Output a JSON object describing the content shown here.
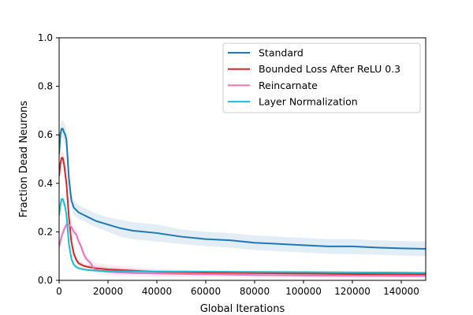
{
  "chart_data": {
    "type": "line",
    "xlabel": "Global Iterations",
    "ylabel": "Fraction Dead Neurons",
    "xlim": [
      0,
      150000
    ],
    "ylim": [
      0,
      1.0
    ],
    "xticks": [
      0,
      20000,
      40000,
      60000,
      80000,
      100000,
      120000,
      140000
    ],
    "xtick_labels": [
      "0",
      "20000",
      "40000",
      "60000",
      "80000",
      "100000",
      "120000",
      "140000"
    ],
    "yticks": [
      0.0,
      0.2,
      0.4,
      0.6,
      0.8,
      1.0
    ],
    "ytick_labels": [
      "0.0",
      "0.2",
      "0.4",
      "0.6",
      "0.8",
      "1.0"
    ],
    "grid": false,
    "legend_position": "top-right",
    "series": [
      {
        "name": "Standard",
        "color": "#1f77b4",
        "x": [
          0,
          500,
          1000,
          1500,
          2000,
          2500,
          3000,
          3500,
          4000,
          5000,
          6000,
          7000,
          8000,
          10000,
          12000,
          15000,
          20000,
          25000,
          30000,
          40000,
          50000,
          60000,
          70000,
          80000,
          90000,
          100000,
          110000,
          120000,
          130000,
          140000,
          150000
        ],
        "y": [
          0.52,
          0.6,
          0.625,
          0.625,
          0.61,
          0.6,
          0.58,
          0.5,
          0.42,
          0.33,
          0.3,
          0.29,
          0.28,
          0.27,
          0.26,
          0.245,
          0.23,
          0.215,
          0.205,
          0.195,
          0.18,
          0.17,
          0.165,
          0.155,
          0.15,
          0.145,
          0.14,
          0.14,
          0.135,
          0.132,
          0.13
        ],
        "y_low": [
          0.48,
          0.56,
          0.59,
          0.59,
          0.57,
          0.56,
          0.54,
          0.46,
          0.38,
          0.3,
          0.27,
          0.26,
          0.255,
          0.245,
          0.235,
          0.22,
          0.2,
          0.18,
          0.17,
          0.16,
          0.15,
          0.14,
          0.135,
          0.125,
          0.12,
          0.115,
          0.11,
          0.108,
          0.105,
          0.102,
          0.1
        ],
        "y_high": [
          0.56,
          0.64,
          0.66,
          0.66,
          0.65,
          0.64,
          0.62,
          0.54,
          0.46,
          0.36,
          0.33,
          0.32,
          0.31,
          0.3,
          0.29,
          0.275,
          0.26,
          0.25,
          0.24,
          0.23,
          0.21,
          0.2,
          0.195,
          0.185,
          0.18,
          0.175,
          0.17,
          0.17,
          0.165,
          0.162,
          0.16
        ]
      },
      {
        "name": "Bounded Loss After ReLU 0.3",
        "color": "#d62728",
        "x": [
          0,
          500,
          1000,
          1500,
          2000,
          2500,
          3000,
          3500,
          4000,
          5000,
          6000,
          7000,
          8000,
          10000,
          12000,
          15000,
          20000,
          30000,
          40000,
          60000,
          80000,
          100000,
          120000,
          140000,
          150000
        ],
        "y": [
          0.43,
          0.48,
          0.505,
          0.505,
          0.48,
          0.44,
          0.4,
          0.33,
          0.26,
          0.16,
          0.11,
          0.085,
          0.07,
          0.06,
          0.055,
          0.05,
          0.045,
          0.04,
          0.035,
          0.032,
          0.03,
          0.028,
          0.026,
          0.025,
          0.025
        ],
        "y_low": [
          0.4,
          0.45,
          0.48,
          0.48,
          0.45,
          0.41,
          0.37,
          0.3,
          0.23,
          0.14,
          0.095,
          0.072,
          0.06,
          0.05,
          0.045,
          0.04,
          0.036,
          0.032,
          0.028,
          0.025,
          0.023,
          0.021,
          0.02,
          0.019,
          0.019
        ],
        "y_high": [
          0.46,
          0.51,
          0.53,
          0.53,
          0.51,
          0.47,
          0.43,
          0.36,
          0.29,
          0.18,
          0.125,
          0.1,
          0.08,
          0.07,
          0.065,
          0.06,
          0.055,
          0.048,
          0.042,
          0.039,
          0.037,
          0.035,
          0.032,
          0.031,
          0.031
        ]
      },
      {
        "name": "Reincarnate",
        "color": "#e377c2",
        "x": [
          0,
          1000,
          2000,
          3000,
          4000,
          5000,
          6000,
          7000,
          8000,
          9000,
          10000,
          11000,
          12000,
          13000,
          14000,
          16000,
          20000,
          30000,
          40000,
          60000,
          80000,
          100000,
          120000,
          140000,
          150000
        ],
        "y": [
          0.14,
          0.18,
          0.21,
          0.23,
          0.23,
          0.22,
          0.2,
          0.19,
          0.16,
          0.14,
          0.11,
          0.09,
          0.08,
          0.07,
          0.05,
          0.04,
          0.035,
          0.03,
          0.028,
          0.025,
          0.022,
          0.02,
          0.019,
          0.018,
          0.018
        ],
        "y_low": [
          0.12,
          0.16,
          0.19,
          0.21,
          0.21,
          0.2,
          0.18,
          0.17,
          0.14,
          0.12,
          0.095,
          0.075,
          0.065,
          0.055,
          0.035,
          0.025,
          0.02,
          0.015,
          0.013,
          0.012,
          0.011,
          0.01,
          0.01,
          0.01,
          0.01
        ],
        "y_high": [
          0.16,
          0.2,
          0.23,
          0.25,
          0.25,
          0.24,
          0.22,
          0.21,
          0.18,
          0.16,
          0.125,
          0.105,
          0.095,
          0.085,
          0.075,
          0.07,
          0.065,
          0.055,
          0.048,
          0.04,
          0.035,
          0.032,
          0.03,
          0.028,
          0.028
        ]
      },
      {
        "name": "Layer Normalization",
        "color": "#17becf",
        "x": [
          0,
          500,
          1000,
          1500,
          2000,
          2500,
          3000,
          3500,
          4000,
          5000,
          6000,
          7000,
          8000,
          10000,
          12000,
          15000,
          20000,
          30000,
          40000,
          60000,
          80000,
          100000,
          120000,
          140000,
          150000
        ],
        "y": [
          0.27,
          0.31,
          0.335,
          0.335,
          0.32,
          0.3,
          0.27,
          0.21,
          0.15,
          0.09,
          0.065,
          0.055,
          0.05,
          0.045,
          0.042,
          0.04,
          0.038,
          0.037,
          0.036,
          0.036,
          0.035,
          0.034,
          0.033,
          0.032,
          0.031
        ],
        "y_low": [
          0.25,
          0.29,
          0.315,
          0.315,
          0.3,
          0.28,
          0.25,
          0.19,
          0.135,
          0.08,
          0.058,
          0.049,
          0.045,
          0.041,
          0.038,
          0.036,
          0.034,
          0.033,
          0.033,
          0.033,
          0.032,
          0.031,
          0.03,
          0.029,
          0.028
        ],
        "y_high": [
          0.29,
          0.33,
          0.355,
          0.355,
          0.34,
          0.32,
          0.29,
          0.23,
          0.165,
          0.1,
          0.072,
          0.061,
          0.055,
          0.049,
          0.046,
          0.044,
          0.042,
          0.041,
          0.039,
          0.039,
          0.038,
          0.037,
          0.036,
          0.035,
          0.034
        ]
      }
    ]
  }
}
